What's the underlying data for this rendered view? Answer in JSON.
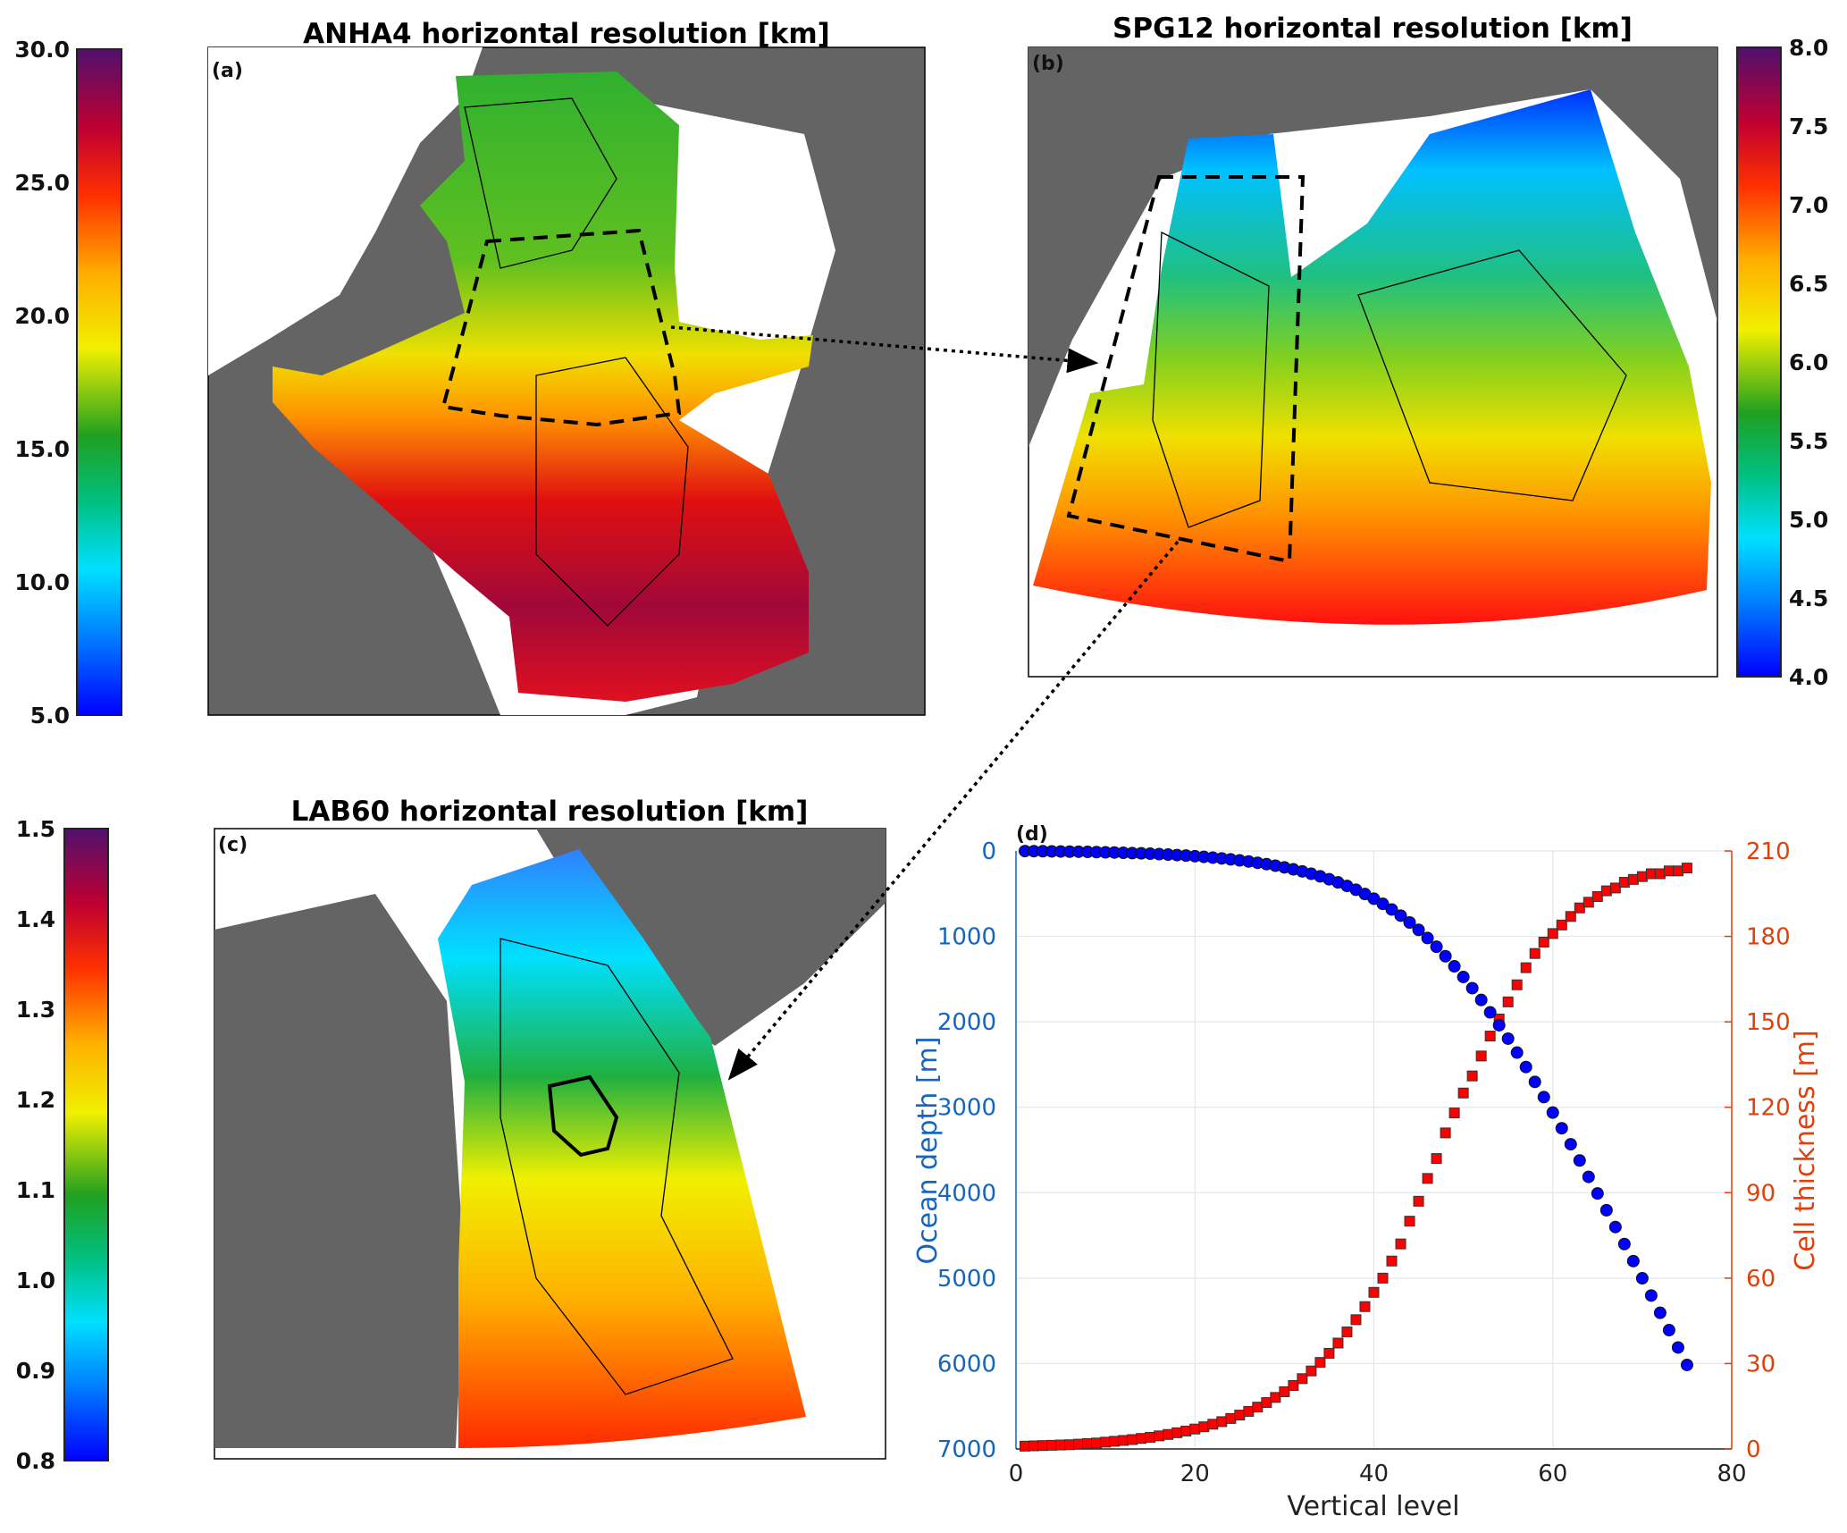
{
  "panels": {
    "a": {
      "title": "ANHA4 horizontal resolution [km]",
      "label": "(a)",
      "colorbar_ticks": [
        "30.0",
        "25.0",
        "20.0",
        "15.0",
        "10.0",
        "5.0"
      ]
    },
    "b": {
      "title": "SPG12 horizontal resolution [km]",
      "label": "(b)",
      "colorbar_ticks": [
        "8.0",
        "7.5",
        "7.0",
        "6.5",
        "6.0",
        "5.5",
        "5.0",
        "4.5",
        "4.0"
      ]
    },
    "c": {
      "title": "LAB60 horizontal resolution [km]",
      "label": "(c)",
      "colorbar_ticks": [
        "1.5",
        "1.4",
        "1.3",
        "1.2",
        "1.1",
        "1.0",
        "0.9",
        "0.8"
      ]
    }
  },
  "colors": {
    "land": "#646464",
    "depth_series": "#0000ff",
    "thickness_series": "#ff0000",
    "left_axis": "#1565c0",
    "right_axis": "#e0400a"
  },
  "chart_data": {
    "type": "scatter",
    "panel_label": "(d)",
    "xlabel": "Vertical level",
    "ylabel_left": "Ocean depth [m]",
    "ylabel_right": "Cell thickness [m]",
    "xlim": [
      0,
      80
    ],
    "ylim_left": [
      7000,
      0
    ],
    "ylim_right": [
      0,
      210
    ],
    "x_ticks": [
      "0",
      "20",
      "40",
      "60",
      "80"
    ],
    "y_left_ticks": [
      "0",
      "1000",
      "2000",
      "3000",
      "4000",
      "5000",
      "6000",
      "7000"
    ],
    "y_right_ticks": [
      "210",
      "180",
      "150",
      "120",
      "90",
      "60",
      "30",
      "0"
    ],
    "grid": true,
    "x": [
      1,
      2,
      3,
      4,
      5,
      6,
      7,
      8,
      9,
      10,
      11,
      12,
      13,
      14,
      15,
      16,
      17,
      18,
      19,
      20,
      21,
      22,
      23,
      24,
      25,
      26,
      27,
      28,
      29,
      30,
      31,
      32,
      33,
      34,
      35,
      36,
      37,
      38,
      39,
      40,
      41,
      42,
      43,
      44,
      45,
      46,
      47,
      48,
      49,
      50,
      51,
      52,
      53,
      54,
      55,
      56,
      57,
      58,
      59,
      60,
      61,
      62,
      63,
      64,
      65,
      66,
      67,
      68,
      69,
      70,
      71,
      72,
      73,
      74,
      75
    ],
    "series": [
      {
        "name": "Ocean depth [m]",
        "axis": "left",
        "marker": "circle",
        "values": [
          1,
          2,
          3,
          5,
          6,
          8,
          9,
          11,
          13,
          16,
          18,
          21,
          25,
          28,
          32,
          37,
          42,
          48,
          54,
          61,
          69,
          78,
          87,
          98,
          110,
          123,
          138,
          154,
          172,
          192,
          215,
          239,
          267,
          297,
          331,
          368,
          409,
          454,
          504,
          559,
          619,
          685,
          757,
          837,
          924,
          1019,
          1121,
          1232,
          1350,
          1475,
          1606,
          1744,
          1889,
          2040,
          2197,
          2360,
          2529,
          2703,
          2881,
          3062,
          3246,
          3433,
          3623,
          3815,
          4009,
          4205,
          4402,
          4601,
          4801,
          5002,
          5204,
          5406,
          5609,
          5812,
          6016
        ]
      },
      {
        "name": "Cell thickness [m]",
        "axis": "right",
        "marker": "square",
        "values": [
          1.0,
          1.1,
          1.2,
          1.3,
          1.4,
          1.5,
          1.7,
          1.9,
          2.1,
          2.4,
          2.7,
          3.0,
          3.3,
          3.7,
          4.1,
          4.6,
          5.1,
          5.7,
          6.3,
          7.0,
          7.8,
          8.7,
          9.6,
          10.7,
          11.9,
          13.2,
          14.7,
          16.3,
          18.1,
          20.1,
          22.3,
          24.7,
          27.4,
          30.4,
          33.6,
          37.2,
          41.1,
          45.4,
          50.0,
          55.0,
          60,
          66,
          72,
          80,
          87,
          95,
          102,
          111,
          118,
          125,
          131,
          138,
          145,
          151,
          157,
          163,
          169,
          174,
          178,
          181,
          184,
          187,
          190,
          192,
          194,
          196,
          197,
          199,
          200,
          201,
          202,
          202,
          203,
          203,
          204
        ]
      }
    ]
  }
}
